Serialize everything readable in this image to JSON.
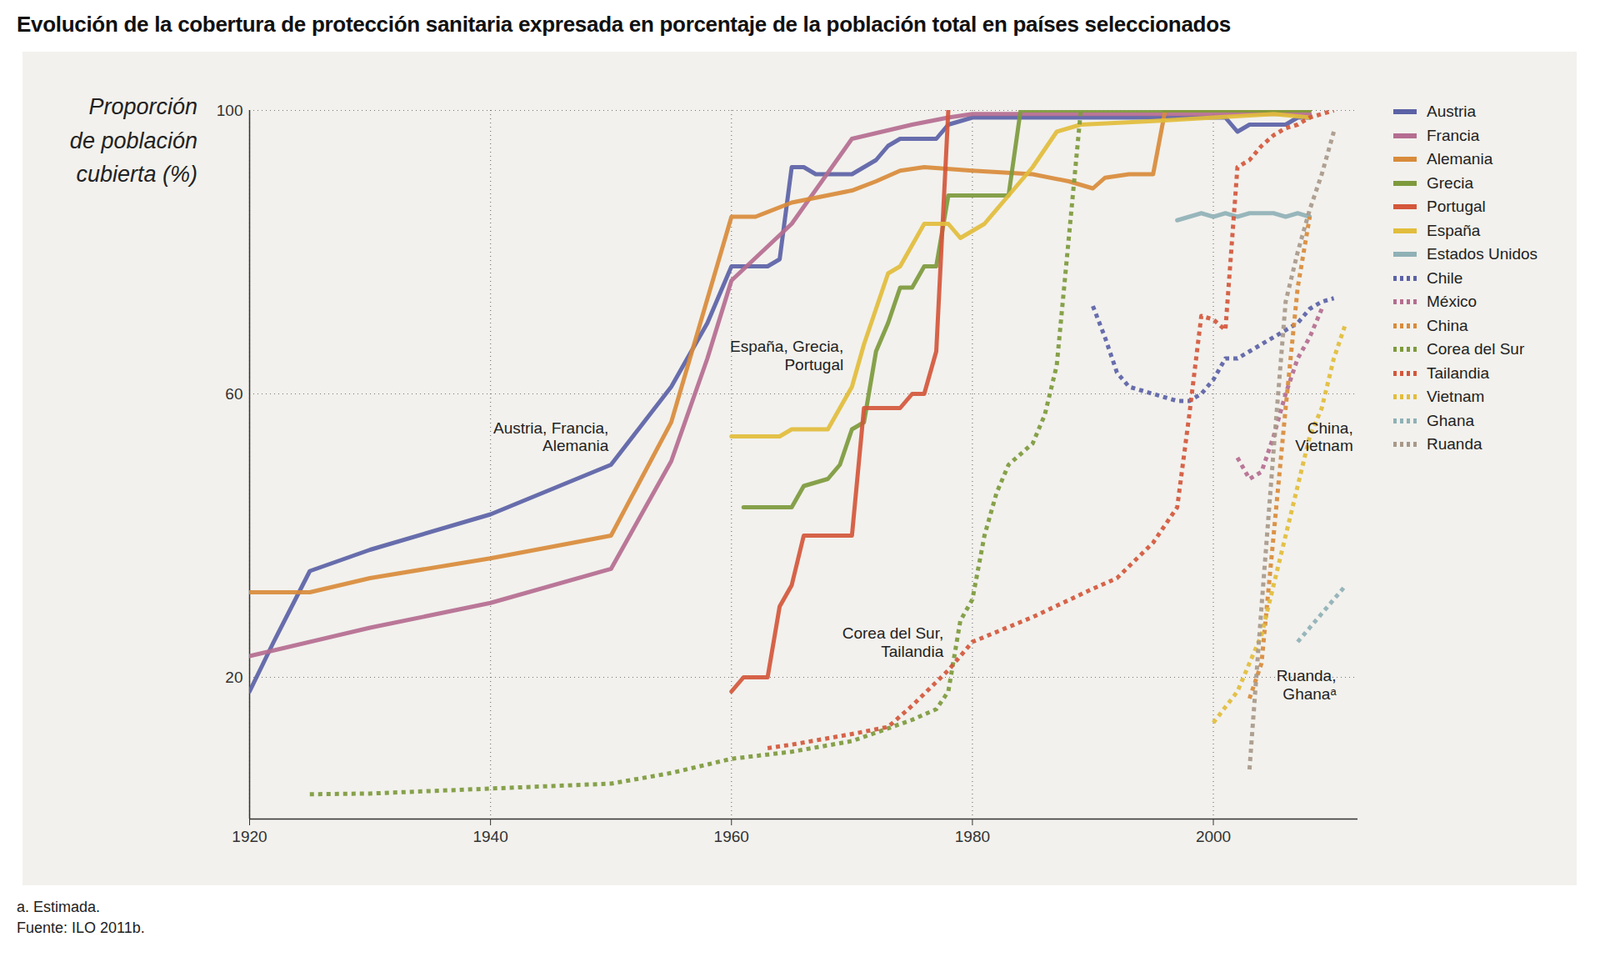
{
  "chart_data": {
    "type": "line",
    "title": "Evolución de la cobertura de protección sanitaria expresada en porcentaje de la población total en países seleccionados",
    "y_label": "Proporción\nde población\ncubierta (%)",
    "xlim": [
      1920,
      2012
    ],
    "ylim": [
      0,
      100
    ],
    "xticks": [
      1920,
      1940,
      1960,
      1980,
      2000
    ],
    "yticks": [
      20,
      60,
      100
    ],
    "grid": true,
    "legend": "right",
    "series": [
      {
        "name": "Austria",
        "color": "#5b62a6",
        "line_style": "solid",
        "x": [
          1920,
          1922,
          1925,
          1930,
          1940,
          1945,
          1950,
          1955,
          1958,
          1960,
          1963,
          1964,
          1965,
          1966,
          1967,
          1970,
          1972,
          1973,
          1974,
          1977,
          1978,
          1980,
          2001,
          2002,
          2003,
          2006,
          2007,
          2008
        ],
        "values": [
          18,
          25,
          35,
          38,
          43,
          46.5,
          50,
          61,
          70,
          78,
          78,
          79,
          92,
          92,
          91,
          91,
          93,
          95,
          96,
          96,
          98,
          99,
          99,
          97,
          98,
          98,
          99,
          99
        ]
      },
      {
        "name": "Francia",
        "color": "#b56d90",
        "line_style": "solid",
        "x": [
          1920,
          1930,
          1940,
          1950,
          1955,
          1958,
          1960,
          1965,
          1970,
          1975,
          1978,
          1980,
          2008
        ],
        "values": [
          23,
          27,
          30.5,
          35.3,
          50.5,
          65,
          76,
          84,
          96,
          98,
          99,
          99.5,
          99.5
        ]
      },
      {
        "name": "Alemania",
        "color": "#d98b3a",
        "line_style": "solid",
        "x": [
          1920,
          1925,
          1930,
          1940,
          1950,
          1955,
          1960,
          1962,
          1965,
          1970,
          1972,
          1974,
          1976,
          1980,
          1985,
          1988,
          1990,
          1991,
          1993,
          1995,
          1996,
          2008
        ],
        "values": [
          32,
          32,
          34,
          36.8,
          40,
          56,
          85,
          85,
          87,
          88.7,
          90,
          91.5,
          92,
          91.5,
          91,
          90,
          89,
          90.5,
          91,
          91,
          100,
          100
        ]
      },
      {
        "name": "Grecia",
        "color": "#7d9a3c",
        "line_style": "solid",
        "x": [
          1961,
          1965,
          1966,
          1968,
          1969,
          1970,
          1971,
          1972,
          1973,
          1974,
          1975,
          1976,
          1977,
          1978,
          1983,
          1984,
          2008
        ],
        "values": [
          44,
          44,
          47,
          48,
          50,
          55,
          56,
          66,
          70,
          75,
          75,
          78,
          78,
          88,
          88,
          100,
          100
        ]
      },
      {
        "name": "Portugal",
        "color": "#d4573b",
        "line_style": "solid",
        "x": [
          1960,
          1961,
          1963,
          1964,
          1965,
          1966,
          1970,
          1971,
          1974,
          1975,
          1976,
          1977,
          1978
        ],
        "values": [
          18,
          20,
          20,
          30,
          33,
          40,
          40,
          58,
          58,
          60,
          60,
          66,
          100
        ]
      },
      {
        "name": "España",
        "color": "#e2bd3b",
        "line_style": "solid",
        "x": [
          1960,
          1964,
          1965,
          1968,
          1969,
          1970,
          1971,
          1972,
          1973,
          1974,
          1975,
          1976,
          1978,
          1979,
          1980,
          1981,
          1983,
          1985,
          1987,
          1989,
          1995,
          2000,
          2005,
          2008
        ],
        "values": [
          54,
          54,
          55,
          55,
          58,
          61,
          67,
          72,
          77,
          78,
          81,
          84,
          84,
          82,
          83,
          84,
          88,
          92,
          97,
          98,
          98.5,
          99,
          99.5,
          99
        ]
      },
      {
        "name": "Estados Unidos",
        "color": "#8fb1b6",
        "line_style": "solid",
        "x": [
          1997,
          1998,
          1999,
          2000,
          2001,
          2002,
          2003,
          2004,
          2005,
          2006,
          2007,
          2008
        ],
        "values": [
          84.5,
          85,
          85.5,
          85,
          85.5,
          85,
          85.5,
          85.5,
          85.5,
          85,
          85.5,
          85
        ]
      },
      {
        "name": "Chile",
        "color": "#5b62a6",
        "line_style": "dotted",
        "x": [
          1990,
          1991,
          1992,
          1993,
          1994,
          1995,
          1996,
          1997,
          1998,
          1999,
          2000,
          2001,
          2002,
          2003,
          2004,
          2005,
          2006,
          2007,
          2008,
          2009,
          2010
        ],
        "values": [
          72.4,
          68,
          63,
          61,
          60.5,
          60,
          59.5,
          59,
          59,
          60,
          62,
          65,
          65,
          66,
          67,
          68,
          69,
          70,
          72,
          73,
          73.5
        ]
      },
      {
        "name": "México",
        "color": "#b56d90",
        "line_style": "dotted",
        "x": [
          2002,
          2003,
          2004,
          2005,
          2006,
          2007,
          2008,
          2009
        ],
        "values": [
          51,
          48,
          49,
          54,
          60,
          65,
          68,
          72
        ]
      },
      {
        "name": "China",
        "color": "#d98b3a",
        "line_style": "dotted",
        "x": [
          2003,
          2004,
          2005,
          2006,
          2007,
          2008
        ],
        "values": [
          17,
          22,
          40,
          58,
          75,
          85
        ]
      },
      {
        "name": "Corea del Sur",
        "color": "#7d9a3c",
        "line_style": "dotted",
        "x": [
          1925,
          1930,
          1940,
          1950,
          1955,
          1960,
          1965,
          1970,
          1975,
          1977,
          1978,
          1979,
          1980,
          1981,
          1982,
          1983,
          1985,
          1986,
          1987,
          1988,
          1989
        ],
        "values": [
          3.5,
          3.6,
          4.3,
          5,
          6.5,
          8.5,
          9.5,
          11,
          14,
          15.5,
          18,
          28,
          31,
          40,
          46,
          50,
          53,
          57,
          64,
          82,
          100
        ]
      },
      {
        "name": "Tailandia",
        "color": "#d4573b",
        "line_style": "dotted",
        "x": [
          1963,
          1965,
          1970,
          1973,
          1975,
          1978,
          1980,
          1985,
          1990,
          1992,
          1995,
          1997,
          1998,
          1999,
          2000,
          2001,
          2002,
          2003,
          2004,
          2005,
          2006,
          2007,
          2008,
          2009,
          2010
        ],
        "values": [
          10,
          10.5,
          12,
          13,
          16,
          21,
          25,
          28.5,
          32.5,
          34,
          39,
          44,
          57,
          71,
          70.5,
          69,
          92,
          93,
          95,
          96.5,
          97.5,
          98,
          99,
          99.5,
          100
        ]
      },
      {
        "name": "Vietnam",
        "color": "#e2bd3b",
        "line_style": "dotted",
        "x": [
          2000,
          2002,
          2004,
          2005,
          2006,
          2007,
          2008,
          2009,
          2010,
          2011
        ],
        "values": [
          13.6,
          18,
          26,
          33,
          40,
          47,
          54,
          58,
          65,
          70
        ]
      },
      {
        "name": "Ghana",
        "color": "#8fb1b6",
        "line_style": "dotted",
        "x": [
          2007,
          2008,
          2009,
          2010,
          2011
        ],
        "values": [
          25,
          27,
          29,
          31,
          33
        ]
      },
      {
        "name": "Ruanda",
        "color": "#a8998a",
        "line_style": "dotted",
        "x": [
          2003,
          2004,
          2005,
          2006,
          2007,
          2008,
          2009,
          2010
        ],
        "values": [
          7,
          30,
          52,
          73,
          80,
          86,
          91,
          97
        ]
      }
    ],
    "annotations": [
      {
        "text": "Austria, Francia,\nAlemania",
        "x": 1949.8,
        "y": 54
      },
      {
        "text": "España, Grecia,\nPortugal",
        "x": 1969.3,
        "y": 65.5
      },
      {
        "text": "Corea del Sur,\nTailandia",
        "x": 1977.6,
        "y": 25
      },
      {
        "text": "China,\nVietnam",
        "x": 2011.6,
        "y": 54
      },
      {
        "text": "Ruanda,\nGhanaᵃ",
        "x": 2010.2,
        "y": 19
      }
    ],
    "notes": [
      "a. Estimada.",
      "Fuente: ILO 2011b."
    ]
  }
}
